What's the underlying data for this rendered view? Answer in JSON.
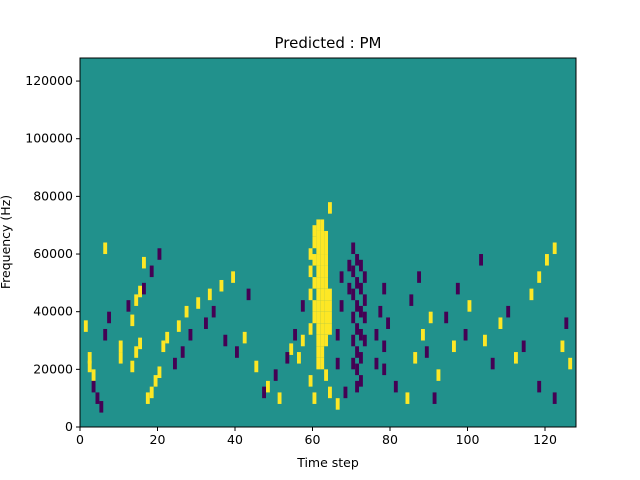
{
  "chart_data": {
    "type": "heatmap",
    "title": "Predicted : PM",
    "xlabel": "Time step",
    "ylabel": "Frequency (Hz)",
    "xlim": [
      0,
      128
    ],
    "ylim": [
      0,
      128000
    ],
    "x_ticks": [
      {
        "value": 0,
        "label": "0"
      },
      {
        "value": 20,
        "label": "20"
      },
      {
        "value": 40,
        "label": "40"
      },
      {
        "value": 60,
        "label": "60"
      },
      {
        "value": 80,
        "label": "80"
      },
      {
        "value": 100,
        "label": "100"
      },
      {
        "value": 120,
        "label": "120"
      }
    ],
    "y_ticks": [
      {
        "value": 0,
        "label": "0"
      },
      {
        "value": 20000,
        "label": "20000"
      },
      {
        "value": 40000,
        "label": "40000"
      },
      {
        "value": 60000,
        "label": "60000"
      },
      {
        "value": 80000,
        "label": "80000"
      },
      {
        "value": 100000,
        "label": "100000"
      },
      {
        "value": 120000,
        "label": "120000"
      }
    ],
    "grid": false,
    "legend": "none",
    "colormap": "viridis",
    "background_level": 0,
    "colors": {
      "high": "#fde725",
      "mid": "#21918c",
      "low": "#440154"
    },
    "high_cells": [
      [
        2,
        19000
      ],
      [
        2,
        22000
      ],
      [
        1,
        33000
      ],
      [
        3,
        16000
      ],
      [
        6,
        60000
      ],
      [
        10,
        22000
      ],
      [
        10,
        26000
      ],
      [
        13,
        19000
      ],
      [
        14,
        24000
      ],
      [
        15,
        27000
      ],
      [
        16,
        55000
      ],
      [
        13,
        35000
      ],
      [
        14,
        42000
      ],
      [
        15,
        45000
      ],
      [
        17,
        8000
      ],
      [
        18,
        10000
      ],
      [
        19,
        14000
      ],
      [
        20,
        17000
      ],
      [
        21,
        26000
      ],
      [
        22,
        29000
      ],
      [
        25,
        33000
      ],
      [
        27,
        38000
      ],
      [
        30,
        41000
      ],
      [
        33,
        44000
      ],
      [
        36,
        47000
      ],
      [
        39,
        50000
      ],
      [
        42,
        29000
      ],
      [
        45,
        19000
      ],
      [
        48,
        12000
      ],
      [
        51,
        8000
      ],
      [
        54,
        25000
      ],
      [
        56,
        22000
      ],
      [
        57,
        28000
      ],
      [
        59,
        14000
      ],
      [
        59,
        32000
      ],
      [
        59,
        44000
      ],
      [
        59,
        52000
      ],
      [
        59,
        58000
      ],
      [
        60,
        8000
      ],
      [
        60,
        36000
      ],
      [
        60,
        40000
      ],
      [
        60,
        48000
      ],
      [
        60,
        56000
      ],
      [
        60,
        62000
      ],
      [
        60,
        66000
      ],
      [
        61,
        20000
      ],
      [
        61,
        24000
      ],
      [
        61,
        28000
      ],
      [
        61,
        32000
      ],
      [
        61,
        36000
      ],
      [
        61,
        40000
      ],
      [
        61,
        44000
      ],
      [
        61,
        48000
      ],
      [
        61,
        52000
      ],
      [
        61,
        56000
      ],
      [
        61,
        60000
      ],
      [
        61,
        64000
      ],
      [
        61,
        68000
      ],
      [
        62,
        20000
      ],
      [
        62,
        24000
      ],
      [
        62,
        28000
      ],
      [
        62,
        32000
      ],
      [
        62,
        36000
      ],
      [
        62,
        40000
      ],
      [
        62,
        44000
      ],
      [
        62,
        48000
      ],
      [
        62,
        52000
      ],
      [
        62,
        56000
      ],
      [
        62,
        60000
      ],
      [
        62,
        64000
      ],
      [
        62,
        68000
      ],
      [
        63,
        28000
      ],
      [
        63,
        32000
      ],
      [
        63,
        36000
      ],
      [
        63,
        40000
      ],
      [
        63,
        44000
      ],
      [
        63,
        48000
      ],
      [
        63,
        52000
      ],
      [
        63,
        56000
      ],
      [
        63,
        60000
      ],
      [
        63,
        64000
      ],
      [
        64,
        32000
      ],
      [
        64,
        36000
      ],
      [
        64,
        40000
      ],
      [
        64,
        44000
      ],
      [
        63,
        16000
      ],
      [
        64,
        10000
      ],
      [
        64,
        74000
      ],
      [
        66,
        6000
      ],
      [
        84,
        8000
      ],
      [
        86,
        22000
      ],
      [
        88,
        30000
      ],
      [
        90,
        36000
      ],
      [
        92,
        16000
      ],
      [
        96,
        26000
      ],
      [
        100,
        40000
      ],
      [
        104,
        28000
      ],
      [
        108,
        34000
      ],
      [
        112,
        22000
      ],
      [
        116,
        44000
      ],
      [
        118,
        50000
      ],
      [
        120,
        56000
      ],
      [
        122,
        60000
      ],
      [
        124,
        26000
      ],
      [
        126,
        20000
      ]
    ],
    "low_cells": [
      [
        3,
        12000
      ],
      [
        4,
        8000
      ],
      [
        5,
        5000
      ],
      [
        6,
        30000
      ],
      [
        7,
        36000
      ],
      [
        12,
        40000
      ],
      [
        16,
        46000
      ],
      [
        18,
        52000
      ],
      [
        20,
        58000
      ],
      [
        24,
        20000
      ],
      [
        26,
        24000
      ],
      [
        28,
        30000
      ],
      [
        32,
        34000
      ],
      [
        34,
        38000
      ],
      [
        37,
        28000
      ],
      [
        40,
        24000
      ],
      [
        43,
        44000
      ],
      [
        47,
        10000
      ],
      [
        50,
        16000
      ],
      [
        53,
        22000
      ],
      [
        55,
        30000
      ],
      [
        57,
        40000
      ],
      [
        66,
        20000
      ],
      [
        66,
        30000
      ],
      [
        67,
        40000
      ],
      [
        67,
        50000
      ],
      [
        68,
        10000
      ],
      [
        69,
        46000
      ],
      [
        69,
        54000
      ],
      [
        70,
        20000
      ],
      [
        70,
        28000
      ],
      [
        70,
        36000
      ],
      [
        70,
        44000
      ],
      [
        70,
        52000
      ],
      [
        70,
        60000
      ],
      [
        71,
        12000
      ],
      [
        71,
        18000
      ],
      [
        71,
        24000
      ],
      [
        71,
        32000
      ],
      [
        71,
        40000
      ],
      [
        71,
        48000
      ],
      [
        71,
        56000
      ],
      [
        72,
        14000
      ],
      [
        72,
        22000
      ],
      [
        72,
        30000
      ],
      [
        72,
        38000
      ],
      [
        72,
        46000
      ],
      [
        72,
        54000
      ],
      [
        73,
        28000
      ],
      [
        73,
        36000
      ],
      [
        73,
        42000
      ],
      [
        73,
        50000
      ],
      [
        76,
        20000
      ],
      [
        76,
        30000
      ],
      [
        77,
        38000
      ],
      [
        78,
        18000
      ],
      [
        78,
        26000
      ],
      [
        78,
        46000
      ],
      [
        79,
        34000
      ],
      [
        81,
        12000
      ],
      [
        85,
        42000
      ],
      [
        87,
        50000
      ],
      [
        89,
        24000
      ],
      [
        91,
        8000
      ],
      [
        94,
        36000
      ],
      [
        97,
        46000
      ],
      [
        99,
        30000
      ],
      [
        103,
        56000
      ],
      [
        106,
        20000
      ],
      [
        110,
        38000
      ],
      [
        114,
        26000
      ],
      [
        118,
        12000
      ],
      [
        122,
        8000
      ],
      [
        125,
        34000
      ]
    ]
  }
}
